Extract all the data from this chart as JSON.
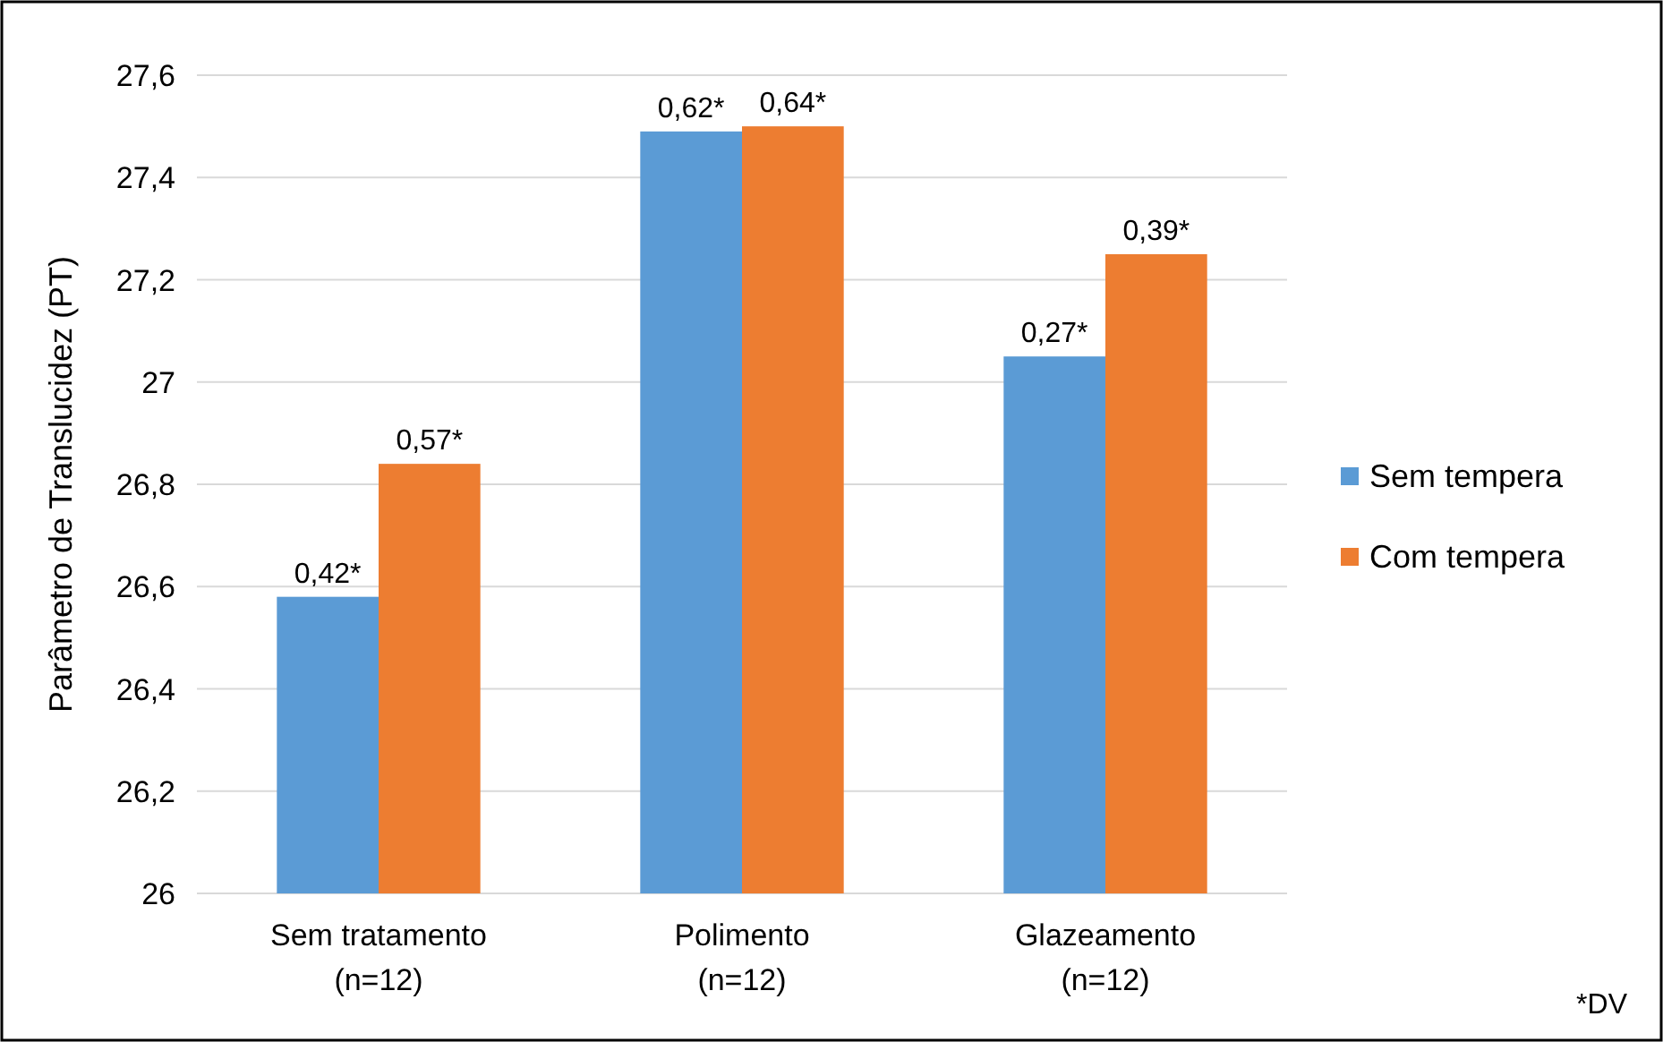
{
  "chart_data": {
    "type": "bar",
    "ylabel": "Parâmetro de Translucidez (PT)",
    "categories": [
      "Sem tratamento\n(n=12)",
      "Polimento\n(n=12)",
      "Glazeamento\n(n=12)"
    ],
    "series": [
      {
        "name": "Sem tempera",
        "color": "#5b9bd5",
        "values": [
          26.58,
          27.49,
          27.05
        ]
      },
      {
        "name": "Com tempera",
        "color": "#ed7d31",
        "values": [
          26.84,
          27.5,
          27.25
        ]
      }
    ],
    "ylim": [
      26,
      27.6
    ],
    "yticks": [
      26,
      {
        "value": 26.2,
        "label": "26,2"
      },
      {
        "value": 26.4,
        "label": "26,4"
      },
      {
        "value": 26.6,
        "label": "26,6"
      },
      {
        "value": 26.8,
        "label": "26,8"
      },
      27,
      {
        "value": 27.2,
        "label": "27,2"
      },
      {
        "value": 27.4,
        "label": "27,4"
      },
      {
        "value": 27.6,
        "label": "27,6"
      }
    ],
    "grid": "y",
    "legend": "right",
    "annotations": [
      {
        "text": "0,42*",
        "x": "Sem tratamento\n(n=12)",
        "y": 26.58
      },
      {
        "text": "0,62*",
        "x": "Polimento\n(n=12)",
        "y": 27.49
      },
      {
        "text": "0,27*",
        "x": "Glazeamento\n(n=12)",
        "y": 27.05
      },
      {
        "text": "0,57*",
        "x": "Sem tratamento\n(n=12)",
        "y": 26.84
      },
      {
        "text": "0,64*",
        "x": "Polimento\n(n=12)",
        "y": 27.5
      },
      {
        "text": "0,39*",
        "x": "Glazeamento\n(n=12)",
        "y": 27.25
      },
      "*DV"
    ]
  }
}
